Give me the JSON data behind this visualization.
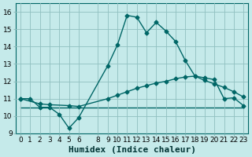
{
  "title": "",
  "xlabel": "Humidex (Indice chaleur)",
  "bg_color": "#c5eaea",
  "grid_color": "#90bfbf",
  "line_color": "#006666",
  "xlim": [
    -0.5,
    23.5
  ],
  "ylim": [
    9,
    16.5
  ],
  "yticks": [
    9,
    10,
    11,
    12,
    13,
    14,
    15,
    16
  ],
  "xticks": [
    0,
    1,
    2,
    3,
    4,
    5,
    6,
    8,
    9,
    10,
    11,
    12,
    13,
    14,
    15,
    16,
    17,
    18,
    19,
    20,
    21,
    22,
    23
  ],
  "line1_x": [
    0,
    1,
    2,
    3,
    4,
    5,
    6,
    9,
    10,
    11,
    12,
    13,
    14,
    15,
    16,
    17,
    18,
    19,
    20,
    21,
    22,
    23
  ],
  "line1_y": [
    11.0,
    11.0,
    10.5,
    10.5,
    10.1,
    9.3,
    9.9,
    12.9,
    14.1,
    15.8,
    15.7,
    14.8,
    15.4,
    14.9,
    14.3,
    13.2,
    12.3,
    12.2,
    12.1,
    11.0,
    11.05,
    10.6
  ],
  "line2_x": [
    0,
    2,
    3,
    5,
    6,
    9,
    10,
    11,
    12,
    13,
    14,
    15,
    16,
    17,
    18,
    19,
    20,
    21,
    22,
    23
  ],
  "line2_y": [
    11.0,
    10.7,
    10.65,
    10.6,
    10.55,
    11.0,
    11.2,
    11.4,
    11.6,
    11.75,
    11.9,
    12.0,
    12.15,
    12.25,
    12.3,
    12.05,
    11.85,
    11.65,
    11.4,
    11.1
  ],
  "line3_x": [
    0,
    2,
    3,
    5,
    20,
    23
  ],
  "line3_y": [
    10.5,
    10.5,
    10.5,
    10.5,
    10.5,
    10.5
  ],
  "tick_fontsize": 6.5,
  "label_fontsize": 8,
  "marker": "D",
  "markersize": 2.5,
  "linewidth": 1.0
}
